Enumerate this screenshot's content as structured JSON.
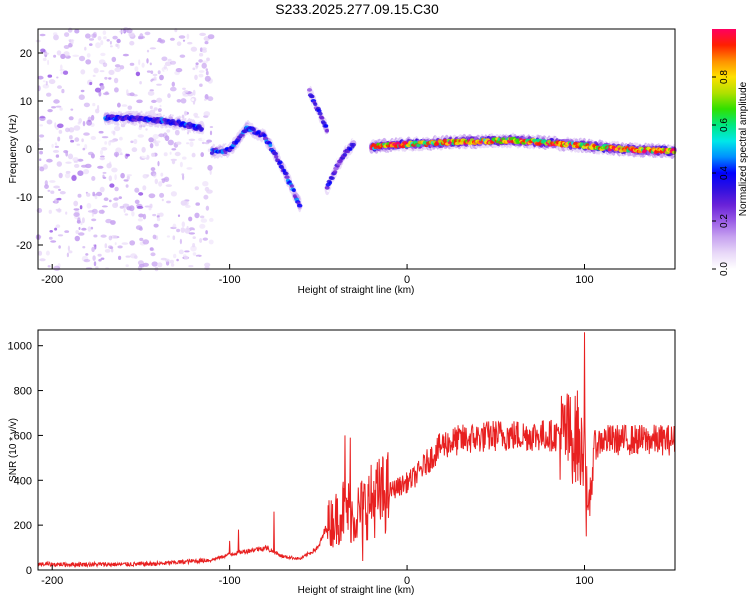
{
  "figure_title": "S233.2025.277.09.15.C30",
  "chart_data": [
    {
      "type": "heatmap",
      "title": "",
      "xlabel": "Height of straight line (km)",
      "ylabel": "Frequency (Hz)",
      "xlim": [
        -208,
        151
      ],
      "ylim": [
        -25,
        25
      ],
      "xticks": [
        -200,
        -100,
        0,
        100
      ],
      "yticks": [
        -20,
        -10,
        0,
        10,
        20
      ],
      "colorbar": {
        "label": "Normalized spectral amplitude",
        "range": [
          0,
          1
        ],
        "ticks": [
          0.0,
          0.2,
          0.4,
          0.6,
          0.8
        ],
        "tick_labels": [
          "0.0",
          "0.2",
          "0.4",
          "0.6",
          "0.8"
        ],
        "colormap": [
          "#ffffff",
          "#e8d8f8",
          "#c7a2f0",
          "#9a5ce6",
          "#6a22d8",
          "#3010e0",
          "#0000ff",
          "#0090ff",
          "#00e8e8",
          "#00e880",
          "#30e000",
          "#b0e000",
          "#ffe000",
          "#ff9000",
          "#ff2000",
          "#ff0060"
        ]
      },
      "features": [
        {
          "name": "scatter-noise",
          "x_range": [
            -208,
            -110
          ],
          "y_range": [
            -25,
            25
          ],
          "amplitude": 0.08
        },
        {
          "name": "early-ridge",
          "path": [
            [
              -170,
              6.5
            ],
            [
              -150,
              6.4
            ],
            [
              -130,
              5.5
            ],
            [
              -115,
              4.2
            ]
          ],
          "amplitude": 0.35
        },
        {
          "name": "mid-band",
          "path": [
            [
              -110,
              -0.5
            ],
            [
              -100,
              -0.3
            ],
            [
              -90,
              4.5
            ],
            [
              -80,
              2.5
            ],
            [
              -70,
              -4
            ],
            [
              -60,
              -12
            ]
          ],
          "amplitude": 0.35
        },
        {
          "name": "rising-streak",
          "path": [
            [
              -45,
              -8
            ],
            [
              -40,
              -4
            ],
            [
              -35,
              -1
            ],
            [
              -30,
              1
            ]
          ],
          "amplitude": 0.3
        },
        {
          "name": "upper-streak",
          "path": [
            [
              -55,
              12
            ],
            [
              -50,
              8
            ],
            [
              -45,
              4
            ]
          ],
          "amplitude": 0.3
        },
        {
          "name": "main-band",
          "path": [
            [
              -20,
              0.5
            ],
            [
              0,
              1
            ],
            [
              30,
              1.5
            ],
            [
              60,
              1.8
            ],
            [
              90,
              1
            ],
            [
              120,
              0
            ],
            [
              151,
              -0.5
            ]
          ],
          "amplitude": 0.8
        }
      ]
    },
    {
      "type": "line",
      "title": "",
      "xlabel": "Height of straight line (km)",
      "ylabel": "SNR (10 * v/v)",
      "xlim": [
        -208,
        151
      ],
      "ylim": [
        0,
        1070
      ],
      "xticks": [
        -200,
        -100,
        0,
        100
      ],
      "yticks": [
        0,
        200,
        400,
        600,
        800,
        1000
      ],
      "series": [
        {
          "name": "SNR",
          "color": "#e82020",
          "trend_x": [
            -208,
            -160,
            -140,
            -120,
            -110,
            -100,
            -80,
            -70,
            -60,
            -50,
            -45,
            -40,
            -35,
            -30,
            -20,
            -10,
            0,
            5,
            10,
            20,
            30,
            40,
            50,
            60,
            80,
            90,
            95,
            98,
            100,
            102,
            105,
            110,
            120,
            151
          ],
          "trend_y": [
            25,
            25,
            28,
            40,
            45,
            70,
            100,
            60,
            50,
            100,
            200,
            230,
            280,
            240,
            310,
            350,
            390,
            420,
            470,
            560,
            580,
            590,
            600,
            600,
            600,
            600,
            580,
            520,
            600,
            200,
            550,
            580,
            580,
            580
          ],
          "spikes": [
            {
              "x": -100,
              "y": 130
            },
            {
              "x": -95,
              "y": 180
            },
            {
              "x": -75,
              "y": 260
            },
            {
              "x": -35,
              "y": 600
            },
            {
              "x": -32,
              "y": 590
            },
            {
              "x": -28,
              "y": 200
            },
            {
              "x": -25,
              "y": 40
            },
            {
              "x": 90,
              "y": 720
            },
            {
              "x": 96,
              "y": 800
            },
            {
              "x": 100,
              "y": 1060
            },
            {
              "x": 101,
              "y": 150
            },
            {
              "x": 104,
              "y": 400
            }
          ]
        }
      ]
    }
  ]
}
